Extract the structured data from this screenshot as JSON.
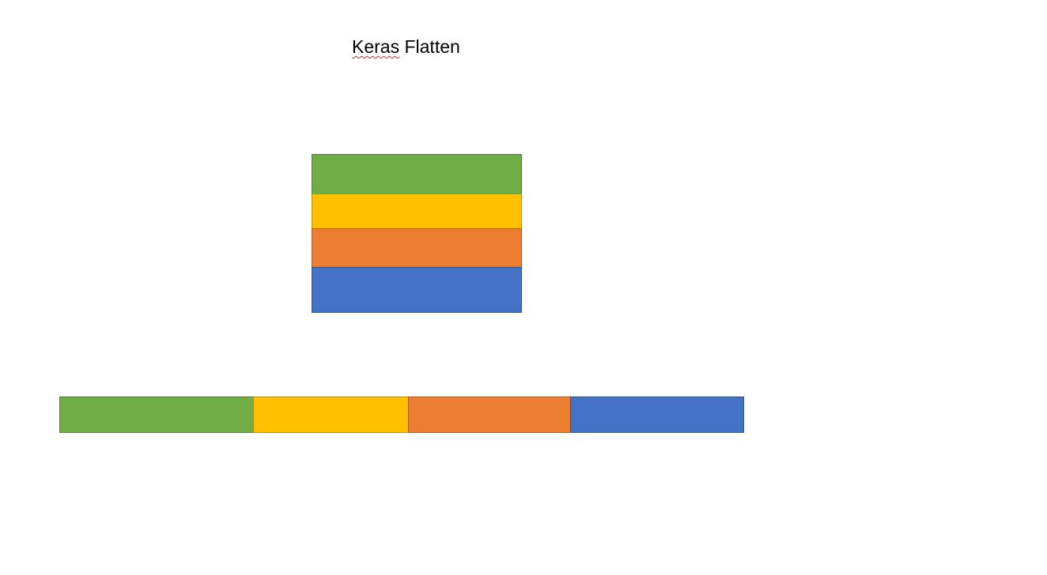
{
  "title": {
    "word1": "Keras",
    "word2": "Flatten"
  },
  "segments": [
    {
      "name": "green",
      "fill": "#70AD47",
      "border": "#507E32"
    },
    {
      "name": "yellow",
      "fill": "#FFC000",
      "border": "#BC8C00"
    },
    {
      "name": "orange",
      "fill": "#ED7D31",
      "border": "#AE5A21"
    },
    {
      "name": "blue",
      "fill": "#4472C4",
      "border": "#2F528F"
    }
  ]
}
